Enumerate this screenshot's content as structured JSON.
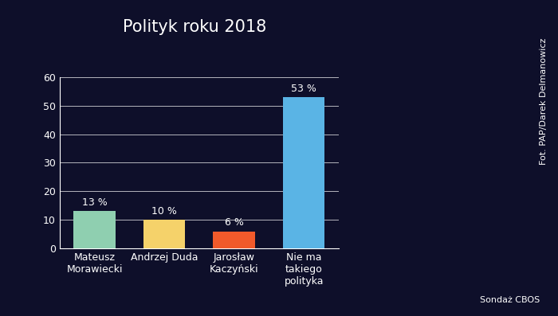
{
  "chart_data": {
    "type": "bar",
    "title": "Polityk roku 2018",
    "categories": [
      "Mateusz Morawiecki",
      "Andrzej Duda",
      "Jarosław Kaczyński",
      "Nie ma takiego polityka"
    ],
    "values": [
      13,
      10,
      6,
      53
    ],
    "value_labels": [
      "13 %",
      "10 %",
      "6 %",
      "53 %"
    ],
    "colors": [
      "#8fcfb0",
      "#f5d26a",
      "#f15a2b",
      "#5ab4e5"
    ],
    "ylim": [
      0,
      60
    ],
    "yticks": [
      0,
      10,
      20,
      30,
      40,
      50,
      60
    ],
    "grid": true,
    "data_labels": true,
    "photo_credit": "Fot. PAP/Darek Delmanowicz",
    "source": "Sondaż CBOS"
  }
}
